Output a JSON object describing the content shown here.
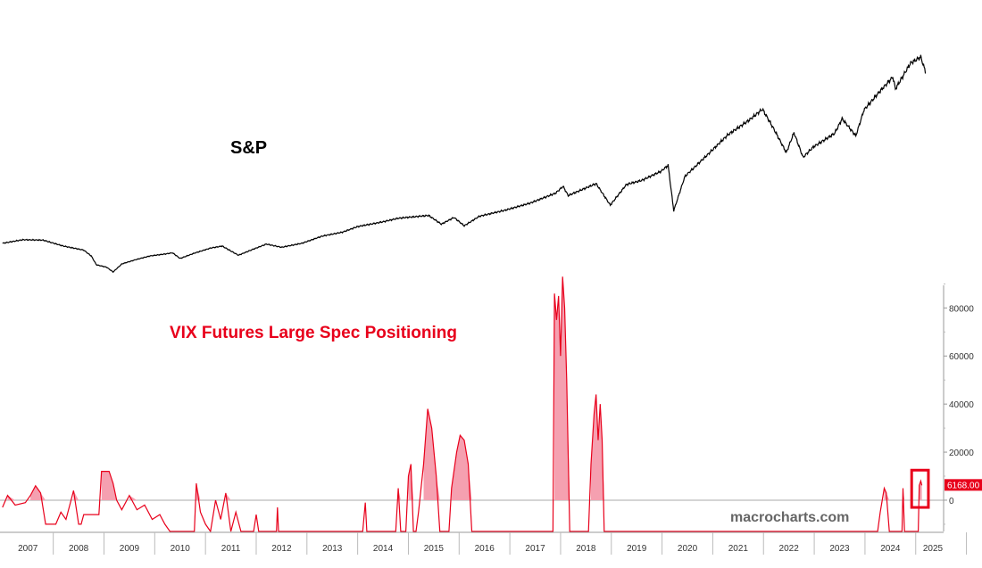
{
  "chart_data": [
    {
      "type": "line",
      "label": "S&P",
      "x_ticks": [
        "2007",
        "2008",
        "2009",
        "2010",
        "2011",
        "2012",
        "2013",
        "2014",
        "2015",
        "2016",
        "2017",
        "2018",
        "2019",
        "2020",
        "2021",
        "2022",
        "2023",
        "2024",
        "2025"
      ],
      "series": [
        {
          "name": "S&P",
          "points": [
            [
              2007.0,
              1420
            ],
            [
              2007.4,
              1510
            ],
            [
              2007.8,
              1500
            ],
            [
              2008.2,
              1350
            ],
            [
              2008.6,
              1250
            ],
            [
              2008.75,
              1100
            ],
            [
              2008.85,
              880
            ],
            [
              2009.05,
              820
            ],
            [
              2009.18,
              700
            ],
            [
              2009.35,
              900
            ],
            [
              2009.6,
              1000
            ],
            [
              2009.9,
              1100
            ],
            [
              2010.2,
              1150
            ],
            [
              2010.35,
              1180
            ],
            [
              2010.5,
              1040
            ],
            [
              2010.8,
              1180
            ],
            [
              2011.1,
              1300
            ],
            [
              2011.33,
              1350
            ],
            [
              2011.65,
              1120
            ],
            [
              2011.9,
              1250
            ],
            [
              2012.2,
              1400
            ],
            [
              2012.5,
              1320
            ],
            [
              2012.9,
              1420
            ],
            [
              2013.3,
              1600
            ],
            [
              2013.7,
              1700
            ],
            [
              2014.0,
              1840
            ],
            [
              2014.5,
              1960
            ],
            [
              2014.8,
              2050
            ],
            [
              2015.4,
              2120
            ],
            [
              2015.65,
              1900
            ],
            [
              2015.9,
              2070
            ],
            [
              2016.1,
              1860
            ],
            [
              2016.4,
              2100
            ],
            [
              2016.9,
              2250
            ],
            [
              2017.4,
              2430
            ],
            [
              2017.9,
              2680
            ],
            [
              2018.05,
              2850
            ],
            [
              2018.15,
              2620
            ],
            [
              2018.7,
              2920
            ],
            [
              2018.98,
              2380
            ],
            [
              2019.3,
              2900
            ],
            [
              2019.6,
              3000
            ],
            [
              2019.98,
              3230
            ],
            [
              2020.12,
              3380
            ],
            [
              2020.23,
              2240
            ],
            [
              2020.45,
              3100
            ],
            [
              2020.9,
              3650
            ],
            [
              2021.3,
              4150
            ],
            [
              2021.7,
              4500
            ],
            [
              2021.98,
              4790
            ],
            [
              2022.2,
              4300
            ],
            [
              2022.45,
              3700
            ],
            [
              2022.6,
              4200
            ],
            [
              2022.78,
              3580
            ],
            [
              2022.98,
              3840
            ],
            [
              2023.4,
              4180
            ],
            [
              2023.55,
              4550
            ],
            [
              2023.82,
              4120
            ],
            [
              2023.98,
              4770
            ],
            [
              2024.3,
              5250
            ],
            [
              2024.55,
              5600
            ],
            [
              2024.6,
              5300
            ],
            [
              2024.9,
              5950
            ],
            [
              2025.1,
              6100
            ],
            [
              2025.2,
              5700
            ]
          ]
        }
      ]
    },
    {
      "type": "area",
      "label": "VIX Futures Large Spec Positioning",
      "yticks": [
        80000,
        60000,
        40000,
        20000,
        0
      ],
      "ytick_labels": [
        "80000",
        "60000",
        "40000",
        "20000",
        "0"
      ],
      "ylim": [
        -13000,
        92000
      ],
      "last_value_label": "6168.00",
      "last_value": 6168,
      "series": [
        {
          "name": "VIX Futures Large Spec Positioning",
          "points": [
            [
              2007.0,
              -3000
            ],
            [
              2007.1,
              2000
            ],
            [
              2007.25,
              -2000
            ],
            [
              2007.45,
              -1000
            ],
            [
              2007.55,
              2000
            ],
            [
              2007.65,
              6000
            ],
            [
              2007.75,
              3000
            ],
            [
              2007.85,
              -10000
            ],
            [
              2008.05,
              -10000
            ],
            [
              2008.15,
              -5000
            ],
            [
              2008.25,
              -8000
            ],
            [
              2008.35,
              0
            ],
            [
              2008.4,
              4000
            ],
            [
              2008.5,
              -10000
            ],
            [
              2008.55,
              -10000
            ],
            [
              2008.6,
              -6000
            ],
            [
              2008.8,
              -6000
            ],
            [
              2008.9,
              -6000
            ],
            [
              2008.95,
              12000
            ],
            [
              2009.1,
              12000
            ],
            [
              2009.18,
              7000
            ],
            [
              2009.25,
              0
            ],
            [
              2009.35,
              -4000
            ],
            [
              2009.5,
              2000
            ],
            [
              2009.65,
              -4000
            ],
            [
              2009.8,
              -2000
            ],
            [
              2009.95,
              -8000
            ],
            [
              2010.1,
              -6000
            ],
            [
              2010.2,
              -10000
            ],
            [
              2010.3,
              -13000
            ],
            [
              2010.5,
              -13000
            ],
            [
              2010.6,
              -13000
            ],
            [
              2010.7,
              -13000
            ],
            [
              2010.78,
              -13000
            ],
            [
              2010.82,
              7000
            ],
            [
              2010.9,
              -5000
            ],
            [
              2011.0,
              -10000
            ],
            [
              2011.1,
              -13000
            ],
            [
              2011.2,
              0
            ],
            [
              2011.3,
              -8000
            ],
            [
              2011.4,
              3000
            ],
            [
              2011.5,
              -13000
            ],
            [
              2011.6,
              -5000
            ],
            [
              2011.7,
              -13000
            ],
            [
              2011.9,
              -13000
            ],
            [
              2011.95,
              -13000
            ],
            [
              2012.0,
              -6000
            ],
            [
              2012.05,
              -13000
            ],
            [
              2012.4,
              -13000
            ],
            [
              2012.42,
              -3000
            ],
            [
              2012.44,
              -13000
            ],
            [
              2014.1,
              -13000
            ],
            [
              2014.15,
              -1000
            ],
            [
              2014.18,
              -13000
            ],
            [
              2014.75,
              -13000
            ],
            [
              2014.8,
              5000
            ],
            [
              2014.85,
              -13000
            ],
            [
              2014.95,
              -13000
            ],
            [
              2015.0,
              10000
            ],
            [
              2015.05,
              15000
            ],
            [
              2015.1,
              -13000
            ],
            [
              2015.15,
              -13000
            ],
            [
              2015.2,
              -5000
            ],
            [
              2015.3,
              15000
            ],
            [
              2015.38,
              38000
            ],
            [
              2015.46,
              30000
            ],
            [
              2015.55,
              10000
            ],
            [
              2015.62,
              -13000
            ],
            [
              2015.8,
              -13000
            ],
            [
              2015.85,
              5000
            ],
            [
              2015.95,
              20000
            ],
            [
              2016.02,
              27000
            ],
            [
              2016.1,
              25000
            ],
            [
              2016.18,
              15000
            ],
            [
              2016.25,
              -13000
            ],
            [
              2017.85,
              -13000
            ],
            [
              2017.88,
              86000
            ],
            [
              2017.92,
              75000
            ],
            [
              2017.96,
              85000
            ],
            [
              2018.0,
              60000
            ],
            [
              2018.04,
              93000
            ],
            [
              2018.08,
              80000
            ],
            [
              2018.12,
              50000
            ],
            [
              2018.18,
              -13000
            ],
            [
              2018.55,
              -13000
            ],
            [
              2018.6,
              15000
            ],
            [
              2018.66,
              36000
            ],
            [
              2018.7,
              44000
            ],
            [
              2018.74,
              25000
            ],
            [
              2018.78,
              40000
            ],
            [
              2018.82,
              25000
            ],
            [
              2018.86,
              -13000
            ],
            [
              2024.25,
              -13000
            ],
            [
              2024.3,
              -5000
            ],
            [
              2024.38,
              5000
            ],
            [
              2024.42,
              3000
            ],
            [
              2024.48,
              -13000
            ],
            [
              2024.73,
              -13000
            ],
            [
              2024.75,
              5000
            ],
            [
              2024.78,
              -13000
            ],
            [
              2025.05,
              -13000
            ],
            [
              2025.07,
              6168
            ],
            [
              2025.1,
              8000
            ],
            [
              2025.12,
              6168
            ]
          ]
        }
      ]
    }
  ],
  "highlight_box": {
    "x0": 2024.92,
    "x1": 2025.25,
    "y0": 12500,
    "y1": -3000
  },
  "watermark": "macrocharts.com",
  "colors": {
    "sp": "#000000",
    "vix": "#e8001b",
    "vix_fill": "#f5a0b0",
    "zero_line": "#aaaaaa",
    "axis": "#999999",
    "label_red": "#e8001b"
  }
}
